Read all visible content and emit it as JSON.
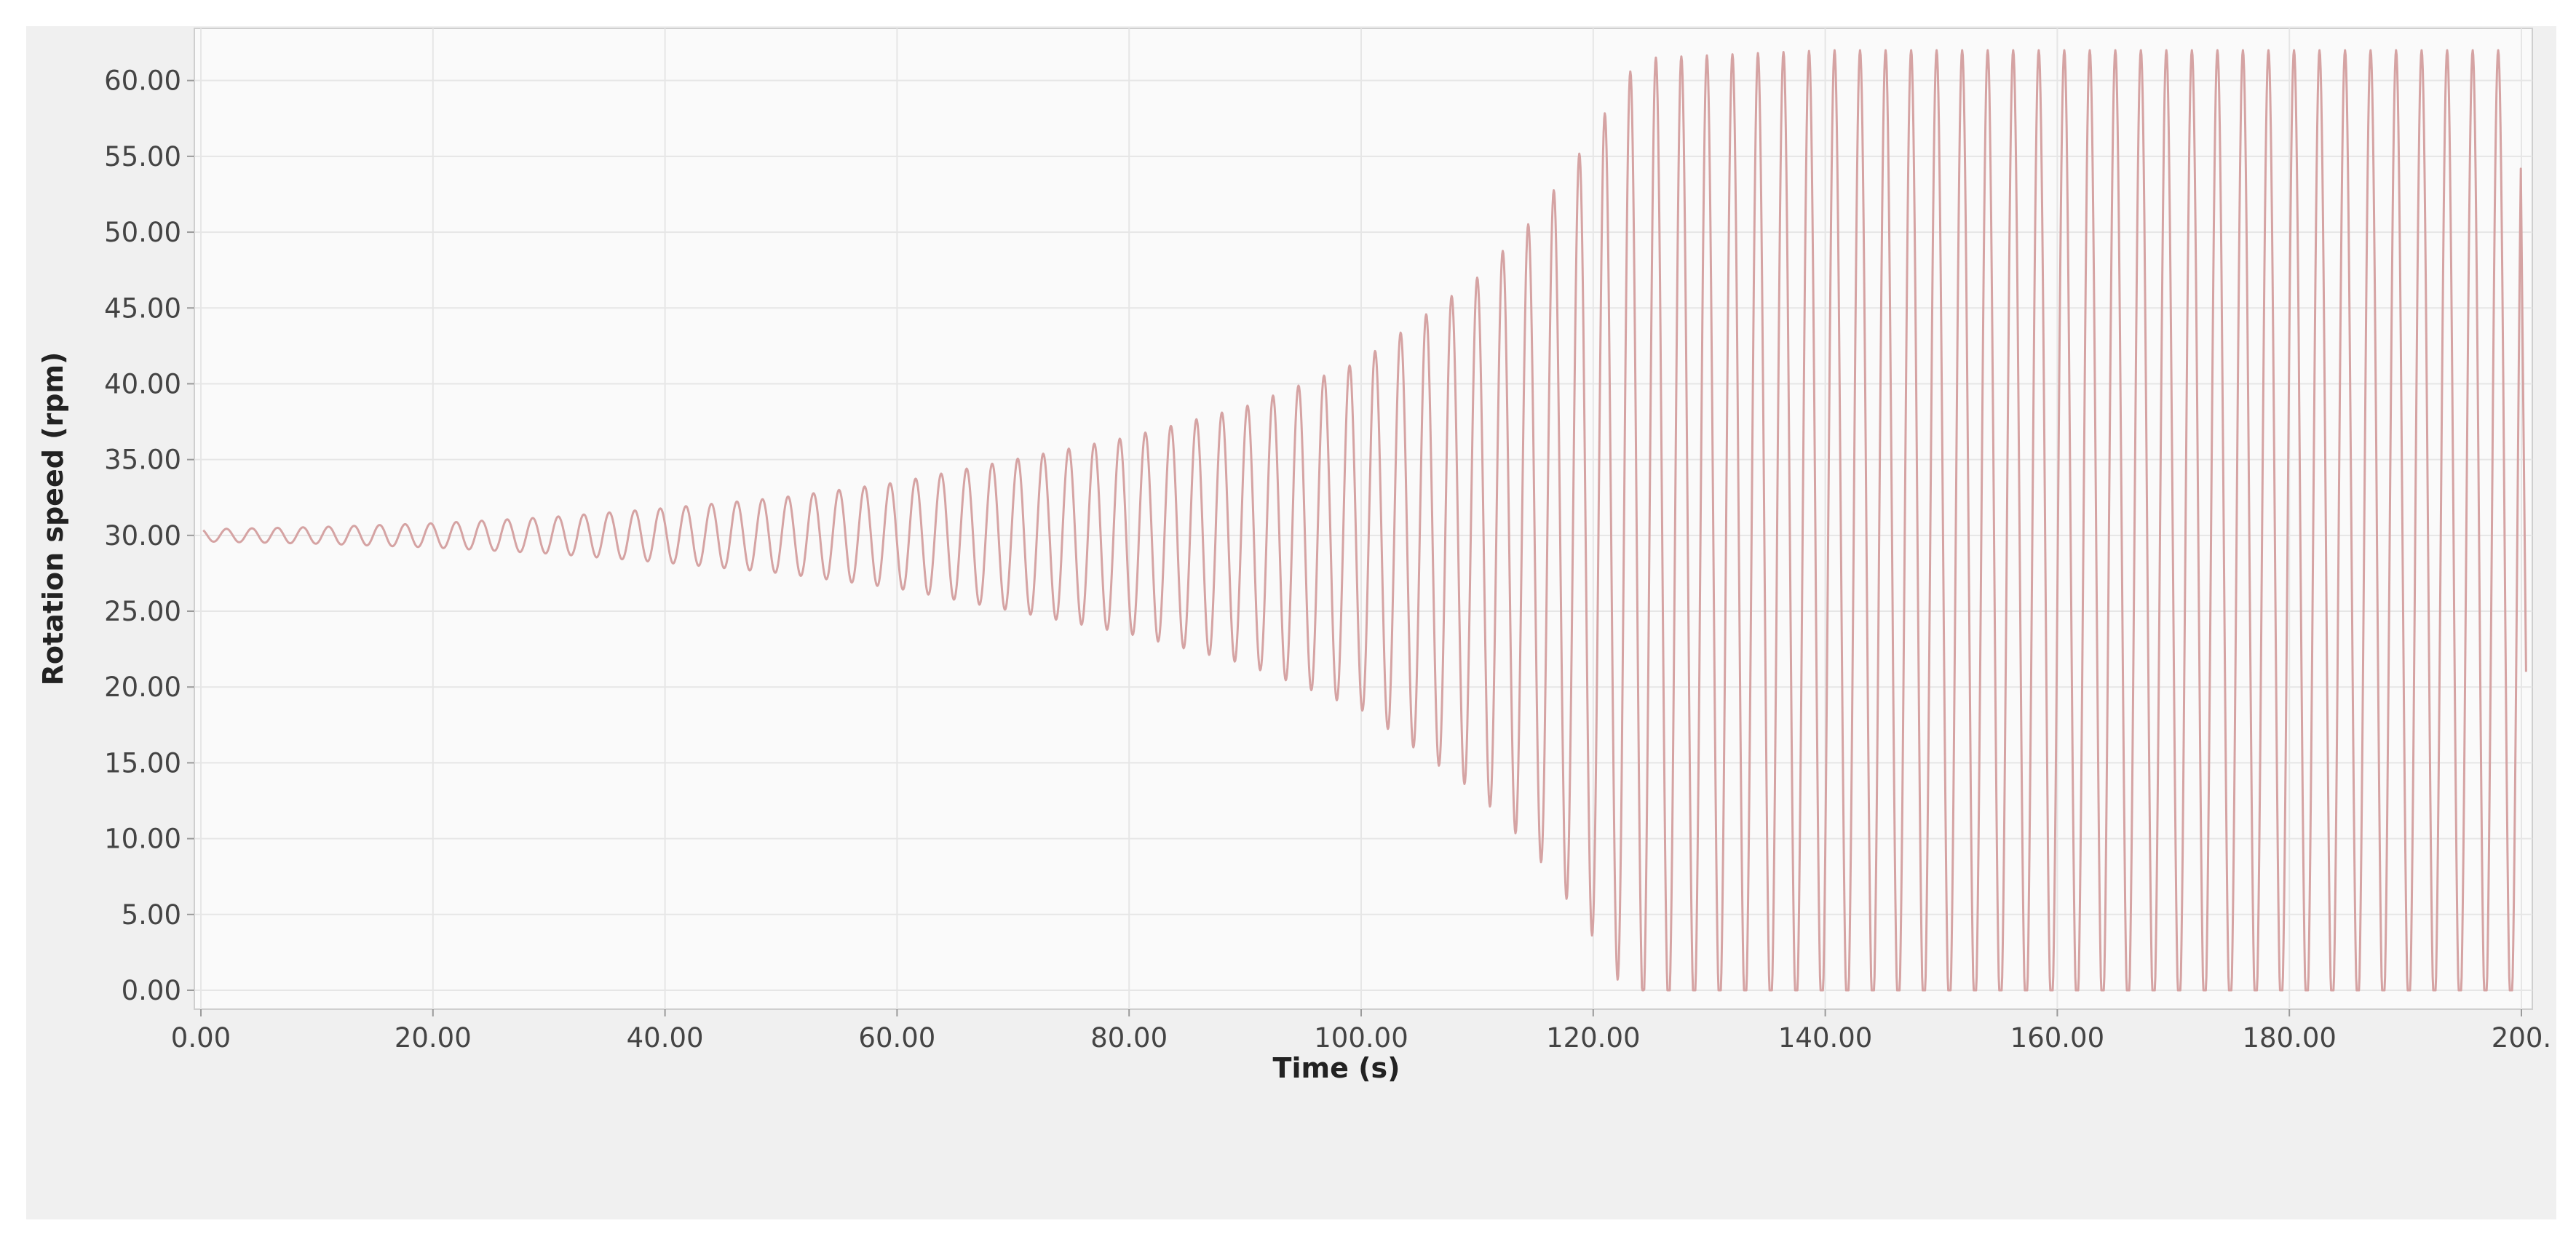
{
  "chart_data": {
    "type": "line",
    "title": "",
    "xlabel": "Time (s)",
    "ylabel": "Rotation speed (rpm)",
    "xlim": [
      0,
      200
    ],
    "ylim": [
      0,
      62
    ],
    "x_ticks": [
      "0.00",
      "20.00",
      "40.00",
      "60.00",
      "80.00",
      "100.00",
      "120.00",
      "140.00",
      "160.00",
      "180.00",
      "200."
    ],
    "y_ticks": [
      "0.00",
      "5.00",
      "10.00",
      "15.00",
      "20.00",
      "25.00",
      "30.00",
      "35.00",
      "40.00",
      "45.00",
      "50.00",
      "55.00",
      "60.00"
    ],
    "grid": true,
    "legend": "none",
    "line_color": "#d5a3a3",
    "series": [
      {
        "period_s": 2.2,
        "baseline_rpm": 30,
        "start_t": 0.2,
        "end_t": 200.4,
        "amplitude_envelope": {
          "t": [
            0,
            10,
            20,
            30,
            40,
            50,
            60,
            70,
            80,
            90,
            100,
            110,
            115,
            120,
            123,
            125,
            140,
            200
          ],
          "amplitude": [
            0.4,
            0.55,
            0.8,
            1.2,
            1.8,
            2.5,
            3.5,
            5.0,
            6.5,
            8.5,
            11.5,
            17,
            21,
            26.5,
            30.5,
            31.5,
            32,
            32
          ]
        },
        "clip_min": 0,
        "last_y_rpm": 21
      }
    ]
  }
}
